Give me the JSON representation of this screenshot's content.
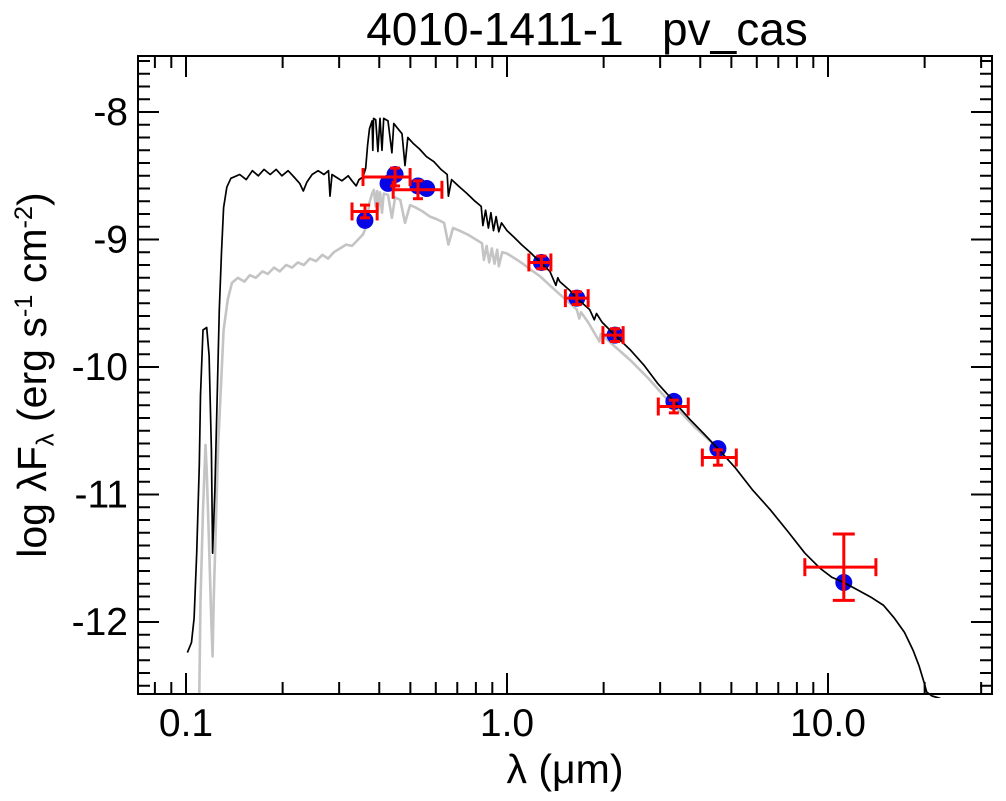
{
  "title": "4010-1411-1   pv_cas",
  "chart_data": {
    "type": "line+scatter",
    "title": "4010-1411-1   pv_cas",
    "xlabel": "λ (μm)",
    "ylabel": "log λF_λ (erg s^-1 cm^-2)",
    "ylabel_parts": [
      [
        "log λF",
        "n"
      ],
      [
        "λ",
        "sub"
      ],
      [
        " (erg s",
        "n"
      ],
      [
        "-1",
        "sup"
      ],
      [
        " cm",
        "n"
      ],
      [
        "-2",
        "sup"
      ],
      [
        ")",
        "n"
      ]
    ],
    "x_scale": "log",
    "y_scale": "linear-log-flux",
    "x_range_um": [
      0.0708,
      32.3
    ],
    "y_range_logflux": [
      -7.56,
      -12.57
    ],
    "grid": false,
    "legend": "none",
    "x_major_ticks": [
      {
        "value": 0.1,
        "label": "0.1"
      },
      {
        "value": 1.0,
        "label": "1.0"
      },
      {
        "value": 10.0,
        "label": "10.0"
      }
    ],
    "x_minor_ticks": [
      0.08,
      0.09,
      0.2,
      0.3,
      0.4,
      0.5,
      0.6,
      0.7,
      0.8,
      0.9,
      2,
      3,
      4,
      5,
      6,
      7,
      8,
      9,
      20,
      30
    ],
    "y_major_ticks": [
      {
        "value": -8,
        "label": "-8"
      },
      {
        "value": -9,
        "label": "-9"
      },
      {
        "value": -10,
        "label": "-10"
      },
      {
        "value": -11,
        "label": "-11"
      },
      {
        "value": -12,
        "label": "-12"
      }
    ],
    "y_minor_step": 0.1,
    "colors": {
      "model_black": "#000000",
      "model_gray": "#c4c4c4",
      "photometry_marker": "#0505e6",
      "error_bar": "#ff0000",
      "axis": "#000000",
      "background": "#ffffff"
    },
    "series": [
      {
        "name": "model-spectrum-black",
        "color": "#000000",
        "width": 1.7,
        "points": [
          [
            0.101,
            -12.24
          ],
          [
            0.104,
            -12.16
          ],
          [
            0.106,
            -11.97
          ],
          [
            0.108,
            -11.46
          ],
          [
            0.11,
            -10.77
          ],
          [
            0.111,
            -10.22
          ],
          [
            0.113,
            -9.71
          ],
          [
            0.116,
            -9.69
          ],
          [
            0.118,
            -9.91
          ],
          [
            0.12,
            -10.65
          ],
          [
            0.121,
            -11.46
          ],
          [
            0.123,
            -10.96
          ],
          [
            0.125,
            -10.26
          ],
          [
            0.127,
            -9.55
          ],
          [
            0.129,
            -9.1
          ],
          [
            0.131,
            -8.75
          ],
          [
            0.134,
            -8.59
          ],
          [
            0.138,
            -8.52
          ],
          [
            0.147,
            -8.49
          ],
          [
            0.154,
            -8.53
          ],
          [
            0.161,
            -8.46
          ],
          [
            0.168,
            -8.5
          ],
          [
            0.175,
            -8.45
          ],
          [
            0.183,
            -8.49
          ],
          [
            0.191,
            -8.45
          ],
          [
            0.199,
            -8.5
          ],
          [
            0.208,
            -8.46
          ],
          [
            0.217,
            -8.51
          ],
          [
            0.226,
            -8.56
          ],
          [
            0.232,
            -8.62
          ],
          [
            0.238,
            -8.55
          ],
          [
            0.247,
            -8.49
          ],
          [
            0.258,
            -8.46
          ],
          [
            0.269,
            -8.49
          ],
          [
            0.278,
            -8.46
          ],
          [
            0.281,
            -8.66
          ],
          [
            0.285,
            -8.49
          ],
          [
            0.293,
            -8.51
          ],
          [
            0.306,
            -8.54
          ],
          [
            0.32,
            -8.5
          ],
          [
            0.329,
            -8.54
          ],
          [
            0.339,
            -8.58
          ],
          [
            0.346,
            -8.53
          ],
          [
            0.356,
            -8.51
          ],
          [
            0.363,
            -8.44
          ],
          [
            0.368,
            -8.26
          ],
          [
            0.373,
            -8.13
          ],
          [
            0.38,
            -8.07
          ],
          [
            0.382,
            -8.3
          ],
          [
            0.384,
            -8.05
          ],
          [
            0.39,
            -8.06
          ],
          [
            0.396,
            -8.31
          ],
          [
            0.402,
            -8.05
          ],
          [
            0.408,
            -8.3
          ],
          [
            0.413,
            -8.05
          ],
          [
            0.426,
            -8.07
          ],
          [
            0.438,
            -8.32
          ],
          [
            0.444,
            -8.09
          ],
          [
            0.457,
            -8.13
          ],
          [
            0.471,
            -8.17
          ],
          [
            0.481,
            -8.42
          ],
          [
            0.491,
            -8.2
          ],
          [
            0.512,
            -8.25
          ],
          [
            0.534,
            -8.29
          ],
          [
            0.561,
            -8.35
          ],
          [
            0.592,
            -8.39
          ],
          [
            0.623,
            -8.45
          ],
          [
            0.651,
            -8.49
          ],
          [
            0.657,
            -8.66
          ],
          [
            0.672,
            -8.53
          ],
          [
            0.705,
            -8.58
          ],
          [
            0.751,
            -8.64
          ],
          [
            0.795,
            -8.7
          ],
          [
            0.831,
            -8.74
          ],
          [
            0.841,
            -8.89
          ],
          [
            0.858,
            -8.77
          ],
          [
            0.875,
            -8.91
          ],
          [
            0.891,
            -8.79
          ],
          [
            0.908,
            -8.93
          ],
          [
            0.925,
            -8.82
          ],
          [
            0.943,
            -8.94
          ],
          [
            0.961,
            -8.87
          ],
          [
            1.0,
            -8.93
          ],
          [
            1.05,
            -8.98
          ],
          [
            1.11,
            -9.04
          ],
          [
            1.18,
            -9.1
          ],
          [
            1.27,
            -9.18
          ],
          [
            1.36,
            -9.25
          ],
          [
            1.42,
            -9.36
          ],
          [
            1.44,
            -9.3
          ],
          [
            1.46,
            -9.33
          ],
          [
            1.57,
            -9.4
          ],
          [
            1.65,
            -9.46
          ],
          [
            1.81,
            -9.55
          ],
          [
            1.87,
            -9.63
          ],
          [
            1.9,
            -9.58
          ],
          [
            1.98,
            -9.65
          ],
          [
            2.17,
            -9.75
          ],
          [
            2.43,
            -9.87
          ],
          [
            2.68,
            -9.99
          ],
          [
            2.95,
            -10.13
          ],
          [
            3.31,
            -10.27
          ],
          [
            3.71,
            -10.41
          ],
          [
            4.13,
            -10.53
          ],
          [
            4.54,
            -10.64
          ],
          [
            5.14,
            -10.79
          ],
          [
            5.8,
            -10.96
          ],
          [
            6.61,
            -11.12
          ],
          [
            7.5,
            -11.29
          ],
          [
            8.47,
            -11.46
          ],
          [
            9.46,
            -11.58
          ],
          [
            10.3,
            -11.65
          ],
          [
            11.2,
            -11.69
          ],
          [
            12.4,
            -11.75
          ],
          [
            13.7,
            -11.81
          ],
          [
            14.9,
            -11.87
          ],
          [
            16.1,
            -11.97
          ],
          [
            17.3,
            -12.08
          ],
          [
            18.4,
            -12.22
          ],
          [
            19.2,
            -12.34
          ],
          [
            19.9,
            -12.47
          ],
          [
            20.3,
            -12.55
          ],
          [
            21.1,
            -12.58
          ],
          [
            22.4,
            -12.6
          ]
        ]
      },
      {
        "name": "model-spectrum-gray",
        "color": "#c4c4c4",
        "width": 2.6,
        "points": [
          [
            0.11,
            -12.56
          ],
          [
            0.111,
            -11.83
          ],
          [
            0.113,
            -11.12
          ],
          [
            0.115,
            -10.61
          ],
          [
            0.116,
            -10.81
          ],
          [
            0.118,
            -11.4
          ],
          [
            0.12,
            -12.02
          ],
          [
            0.121,
            -12.27
          ],
          [
            0.122,
            -11.83
          ],
          [
            0.124,
            -11.2
          ],
          [
            0.126,
            -10.61
          ],
          [
            0.129,
            -10.06
          ],
          [
            0.131,
            -9.71
          ],
          [
            0.135,
            -9.47
          ],
          [
            0.139,
            -9.34
          ],
          [
            0.145,
            -9.3
          ],
          [
            0.152,
            -9.33
          ],
          [
            0.158,
            -9.28
          ],
          [
            0.165,
            -9.3
          ],
          [
            0.173,
            -9.25
          ],
          [
            0.18,
            -9.27
          ],
          [
            0.188,
            -9.22
          ],
          [
            0.196,
            -9.25
          ],
          [
            0.205,
            -9.2
          ],
          [
            0.214,
            -9.22
          ],
          [
            0.223,
            -9.18
          ],
          [
            0.233,
            -9.2
          ],
          [
            0.243,
            -9.15
          ],
          [
            0.254,
            -9.17
          ],
          [
            0.266,
            -9.12
          ],
          [
            0.277,
            -9.15
          ],
          [
            0.289,
            -9.1
          ],
          [
            0.302,
            -9.07
          ],
          [
            0.315,
            -9.04
          ],
          [
            0.329,
            -9.05
          ],
          [
            0.344,
            -9.0
          ],
          [
            0.356,
            -8.96
          ],
          [
            0.363,
            -8.91
          ],
          [
            0.368,
            -8.81
          ],
          [
            0.373,
            -8.71
          ],
          [
            0.38,
            -8.64
          ],
          [
            0.385,
            -8.61
          ],
          [
            0.39,
            -8.74
          ],
          [
            0.394,
            -8.62
          ],
          [
            0.396,
            -8.78
          ],
          [
            0.402,
            -8.63
          ],
          [
            0.408,
            -8.79
          ],
          [
            0.413,
            -8.64
          ],
          [
            0.426,
            -8.65
          ],
          [
            0.438,
            -8.83
          ],
          [
            0.448,
            -8.67
          ],
          [
            0.465,
            -8.69
          ],
          [
            0.481,
            -8.87
          ],
          [
            0.499,
            -8.73
          ],
          [
            0.52,
            -8.75
          ],
          [
            0.546,
            -8.78
          ],
          [
            0.575,
            -8.82
          ],
          [
            0.604,
            -8.84
          ],
          [
            0.637,
            -8.87
          ],
          [
            0.657,
            -9.04
          ],
          [
            0.679,
            -8.91
          ],
          [
            0.71,
            -8.93
          ],
          [
            0.753,
            -8.96
          ],
          [
            0.8,
            -9.0
          ],
          [
            0.836,
            -9.03
          ],
          [
            0.847,
            -9.16
          ],
          [
            0.864,
            -9.05
          ],
          [
            0.88,
            -9.18
          ],
          [
            0.897,
            -9.07
          ],
          [
            0.914,
            -9.19
          ],
          [
            0.932,
            -9.08
          ],
          [
            0.943,
            -9.21
          ],
          [
            0.966,
            -9.1
          ],
          [
            1.0,
            -9.11
          ],
          [
            1.06,
            -9.15
          ],
          [
            1.12,
            -9.19
          ],
          [
            1.19,
            -9.24
          ],
          [
            1.27,
            -9.29
          ],
          [
            1.36,
            -9.36
          ],
          [
            1.46,
            -9.43
          ],
          [
            1.57,
            -9.5
          ],
          [
            1.65,
            -9.55
          ],
          [
            1.68,
            -9.62
          ],
          [
            1.7,
            -9.57
          ],
          [
            1.79,
            -9.65
          ],
          [
            1.94,
            -9.8
          ],
          [
            1.96,
            -9.74
          ],
          [
            2.17,
            -9.84
          ],
          [
            2.43,
            -9.95
          ],
          [
            2.76,
            -10.09
          ],
          [
            3.12,
            -10.24
          ],
          [
            3.46,
            -10.35
          ],
          [
            3.84,
            -10.47
          ],
          [
            4.29,
            -10.58
          ],
          [
            4.55,
            -10.64
          ]
        ]
      }
    ],
    "photometry": [
      {
        "lam": 0.361,
        "logF": -8.85,
        "bar": {
          "lo": 0.329,
          "hi": 0.394,
          "logF": -8.78,
          "err": 0.05
        }
      },
      {
        "lam": 0.426,
        "logF": -8.56,
        "bar": null
      },
      {
        "lam": 0.448,
        "logF": -8.49,
        "bar": {
          "lo": 0.356,
          "hi": 0.499,
          "logF": -8.51,
          "err": 0.07
        }
      },
      {
        "lam": 0.528,
        "logF": -8.58,
        "bar": {
          "lo": 0.442,
          "hi": 0.627,
          "logF": -8.61,
          "err": 0.07
        }
      },
      {
        "lam": 0.562,
        "logF": -8.6,
        "bar": null
      },
      {
        "lam": 1.28,
        "logF": -9.18,
        "bar": {
          "lo": 1.17,
          "hi": 1.37,
          "logF": -9.18,
          "err": 0.05
        }
      },
      {
        "lam": 1.65,
        "logF": -9.46,
        "bar": {
          "lo": 1.52,
          "hi": 1.79,
          "logF": -9.46,
          "err": 0.05
        }
      },
      {
        "lam": 2.17,
        "logF": -9.75,
        "bar": {
          "lo": 1.99,
          "hi": 2.3,
          "logF": -9.75,
          "err": 0.05
        }
      },
      {
        "lam": 3.31,
        "logF": -10.27,
        "bar": {
          "lo": 2.96,
          "hi": 3.67,
          "logF": -10.31,
          "err": 0.05
        }
      },
      {
        "lam": 4.54,
        "logF": -10.64,
        "bar": {
          "lo": 4.06,
          "hi": 5.18,
          "logF": -10.71,
          "err": 0.06
        }
      },
      {
        "lam": 11.2,
        "logF": -11.69,
        "bar": {
          "lo": 8.47,
          "hi": 14.1,
          "logF": -11.57,
          "err": 0.26
        }
      }
    ]
  }
}
